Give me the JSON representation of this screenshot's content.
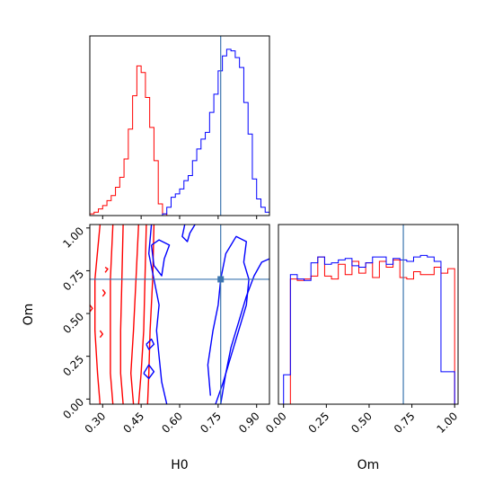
{
  "chart_data": {
    "type": "corner",
    "parameters": [
      "H0",
      "Om"
    ],
    "truth": {
      "H0": 0.76,
      "Om": 0.7
    },
    "colors": {
      "red": "#ff0000",
      "blue": "#0000ff",
      "truth": "#3b75af"
    },
    "panels": {
      "h0_hist": {
        "xlim": [
          0.25,
          0.95
        ],
        "bins_x": [
          0.25,
          0.2667,
          0.2833,
          0.3,
          0.3167,
          0.3333,
          0.35,
          0.3667,
          0.3833,
          0.4,
          0.4167,
          0.4333,
          0.45,
          0.4667,
          0.4833,
          0.5,
          0.5167,
          0.5333,
          0.55,
          0.5667,
          0.5833,
          0.6,
          0.6167,
          0.6333,
          0.65,
          0.6667,
          0.6833,
          0.7,
          0.7167,
          0.7333,
          0.75,
          0.7667,
          0.7833,
          0.8,
          0.8167,
          0.8333,
          0.85,
          0.8667,
          0.8833,
          0.9,
          0.9167,
          0.9333,
          0.95
        ],
        "series": [
          {
            "color": "red",
            "values": [
              0.01,
              0.02,
              0.04,
              0.06,
              0.09,
              0.12,
              0.17,
              0.23,
              0.34,
              0.52,
              0.72,
              0.9,
              0.86,
              0.71,
              0.53,
              0.33,
              0.07,
              0.01,
              0,
              0,
              0,
              0,
              0,
              0,
              0,
              0,
              0,
              0,
              0,
              0,
              0,
              0,
              0,
              0,
              0,
              0,
              0,
              0,
              0,
              0,
              0,
              0
            ]
          },
          {
            "color": "blue",
            "values": [
              0,
              0,
              0,
              0,
              0,
              0,
              0,
              0,
              0,
              0,
              0,
              0,
              0,
              0,
              0,
              0,
              0,
              0.01,
              0.05,
              0.11,
              0.13,
              0.16,
              0.21,
              0.24,
              0.33,
              0.4,
              0.46,
              0.5,
              0.62,
              0.73,
              0.87,
              0.96,
              1.0,
              0.99,
              0.95,
              0.89,
              0.68,
              0.49,
              0.22,
              0.1,
              0.05,
              0.02
            ]
          }
        ]
      },
      "om_hist": {
        "xlim": [
          -0.03,
          1.02
        ],
        "bins_x": [
          0,
          0.04,
          0.08,
          0.12,
          0.16,
          0.2,
          0.24,
          0.28,
          0.32,
          0.36,
          0.4,
          0.44,
          0.48,
          0.52,
          0.56,
          0.6,
          0.64,
          0.68,
          0.72,
          0.76,
          0.8,
          0.84,
          0.88,
          0.92,
          0.96,
          1.0
        ],
        "series": [
          {
            "color": "red",
            "values": [
              0,
              0.85,
              0.84,
              0.85,
              0.87,
              1.0,
              0.87,
              0.85,
              0.95,
              0.88,
              0.97,
              0.89,
              0.96,
              0.86,
              0.97,
              0.93,
              0.98,
              0.86,
              0.85,
              0.9,
              0.88,
              0.88,
              0.93,
              0.89,
              0.92
            ]
          },
          {
            "color": "blue",
            "values": [
              0.2,
              0.88,
              0.85,
              0.84,
              0.96,
              1.0,
              0.95,
              0.96,
              0.98,
              0.99,
              0.94,
              0.93,
              0.96,
              1.0,
              1.0,
              0.95,
              0.99,
              0.98,
              0.97,
              1.0,
              1.01,
              1.0,
              0.97,
              0.22,
              0.22
            ]
          }
        ]
      },
      "joint": {
        "xlim": [
          0.25,
          0.95
        ],
        "ylim": [
          -0.03,
          1.02
        ],
        "contours": [
          {
            "color": "red",
            "points": [
              [
                0.29,
                1.02
              ],
              [
                0.27,
                0.7
              ],
              [
                0.27,
                0.4
              ],
              [
                0.28,
                0.15
              ],
              [
                0.29,
                -0.03
              ]
            ]
          },
          {
            "color": "red",
            "points": [
              [
                0.34,
                1.02
              ],
              [
                0.33,
                0.7
              ],
              [
                0.33,
                0.4
              ],
              [
                0.33,
                0.15
              ],
              [
                0.34,
                -0.03
              ]
            ]
          },
          {
            "color": "red",
            "points": [
              [
                0.38,
                1.02
              ],
              [
                0.375,
                0.7
              ],
              [
                0.37,
                0.4
              ],
              [
                0.37,
                0.15
              ],
              [
                0.38,
                -0.03
              ]
            ]
          },
          {
            "color": "red",
            "points": [
              [
                0.44,
                1.02
              ],
              [
                0.43,
                0.7
              ],
              [
                0.42,
                0.4
              ],
              [
                0.41,
                0.15
              ],
              [
                0.42,
                -0.03
              ]
            ]
          },
          {
            "color": "red",
            "points": [
              [
                0.47,
                1.02
              ],
              [
                0.465,
                0.7
              ],
              [
                0.46,
                0.4
              ],
              [
                0.45,
                0.15
              ],
              [
                0.44,
                -0.03
              ]
            ]
          },
          {
            "color": "red",
            "points": [
              [
                0.5,
                1.02
              ],
              [
                0.495,
                0.7
              ],
              [
                0.485,
                0.4
              ],
              [
                0.48,
                0.15
              ],
              [
                0.475,
                -0.03
              ]
            ]
          },
          {
            "color": "red",
            "points": [
              [
                0.31,
                0.77
              ],
              [
                0.32,
                0.76
              ],
              [
                0.31,
                0.74
              ]
            ]
          },
          {
            "color": "red",
            "points": [
              [
                0.3,
                0.64
              ],
              [
                0.31,
                0.62
              ],
              [
                0.3,
                0.6
              ]
            ]
          },
          {
            "color": "red",
            "points": [
              [
                0.29,
                0.4
              ],
              [
                0.3,
                0.38
              ],
              [
                0.29,
                0.36
              ]
            ]
          },
          {
            "color": "red",
            "points": [
              [
                0.25,
                0.55
              ],
              [
                0.26,
                0.53
              ],
              [
                0.25,
                0.51
              ]
            ]
          },
          {
            "color": "blue",
            "points": [
              [
                0.49,
                1.02
              ],
              [
                0.48,
                0.85
              ],
              [
                0.5,
                0.7
              ],
              [
                0.52,
                0.55
              ],
              [
                0.51,
                0.4
              ],
              [
                0.52,
                0.25
              ],
              [
                0.53,
                0.1
              ],
              [
                0.55,
                -0.03
              ]
            ]
          },
          {
            "color": "blue",
            "points": [
              [
                0.49,
                0.9
              ],
              [
                0.52,
                0.93
              ],
              [
                0.56,
                0.9
              ],
              [
                0.54,
                0.82
              ],
              [
                0.53,
                0.72
              ],
              [
                0.5,
                0.78
              ],
              [
                0.49,
                0.9
              ]
            ]
          },
          {
            "color": "blue",
            "points": [
              [
                0.46,
                0.15
              ],
              [
                0.48,
                0.2
              ],
              [
                0.5,
                0.16
              ],
              [
                0.48,
                0.12
              ],
              [
                0.46,
                0.15
              ]
            ]
          },
          {
            "color": "blue",
            "points": [
              [
                0.47,
                0.32
              ],
              [
                0.49,
                0.35
              ],
              [
                0.5,
                0.32
              ],
              [
                0.48,
                0.29
              ],
              [
                0.47,
                0.32
              ]
            ]
          },
          {
            "color": "blue",
            "points": [
              [
                0.62,
                1.02
              ],
              [
                0.61,
                0.95
              ],
              [
                0.63,
                0.92
              ],
              [
                0.64,
                0.97
              ],
              [
                0.66,
                1.02
              ]
            ]
          },
          {
            "color": "blue",
            "points": [
              [
                0.72,
                0.02
              ],
              [
                0.71,
                0.2
              ],
              [
                0.73,
                0.4
              ],
              [
                0.75,
                0.55
              ],
              [
                0.76,
                0.7
              ],
              [
                0.78,
                0.85
              ],
              [
                0.82,
                0.95
              ],
              [
                0.86,
                0.92
              ],
              [
                0.85,
                0.8
              ],
              [
                0.87,
                0.7
              ],
              [
                0.86,
                0.55
              ],
              [
                0.83,
                0.4
              ],
              [
                0.8,
                0.25
              ],
              [
                0.77,
                0.1
              ],
              [
                0.74,
                -0.03
              ]
            ]
          },
          {
            "color": "blue",
            "points": [
              [
                0.76,
                -0.03
              ],
              [
                0.78,
                0.15
              ],
              [
                0.8,
                0.3
              ],
              [
                0.83,
                0.45
              ],
              [
                0.86,
                0.6
              ],
              [
                0.89,
                0.72
              ],
              [
                0.92,
                0.8
              ],
              [
                0.95,
                0.82
              ]
            ]
          }
        ]
      }
    },
    "axes": {
      "h0_ticks": [
        "0.30",
        "0.45",
        "0.60",
        "0.75",
        "0.90"
      ],
      "h0_tick_values": [
        0.3,
        0.45,
        0.6,
        0.75,
        0.9
      ],
      "om_ticks": [
        "0.00",
        "0.25",
        "0.50",
        "0.75",
        "1.00"
      ],
      "om_tick_values": [
        0.0,
        0.25,
        0.5,
        0.75,
        1.0
      ],
      "xlabel_left": "H0",
      "xlabel_right": "Om",
      "ylabel": "Om"
    }
  }
}
